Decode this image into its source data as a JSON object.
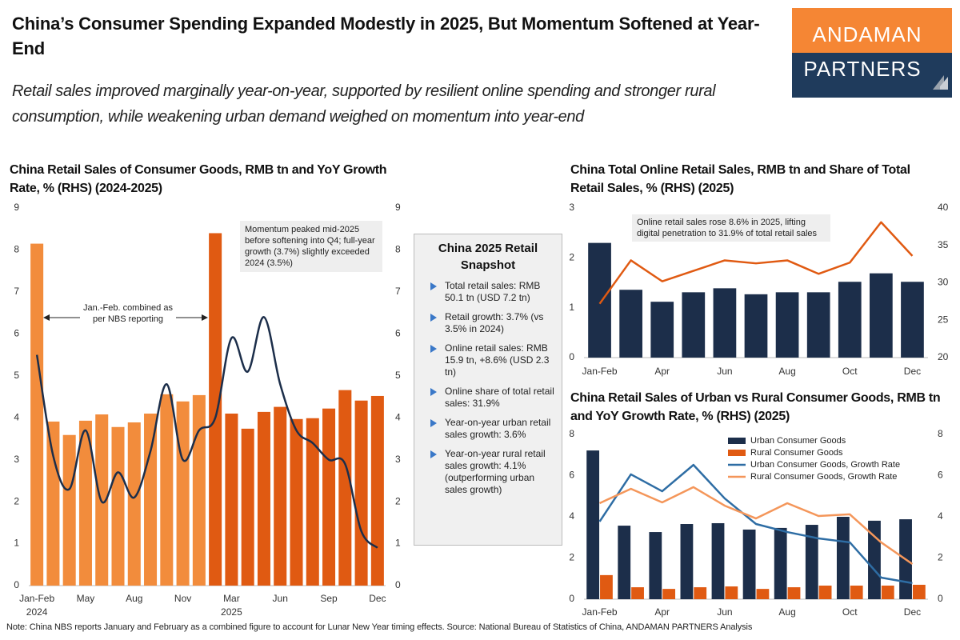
{
  "title": "China’s Consumer Spending Expanded Modestly in 2025, But Momentum Softened at Year-End",
  "subtitle": "Retail sales improved marginally year-on-year, supported by resilient online spending and stronger rural consumption, while weakening urban demand weighed on momentum into year-end",
  "logo": {
    "line1": "ANDAMAN",
    "line2": "PARTNERS"
  },
  "snapshot": {
    "title": "China 2025 Retail Snapshot",
    "items": [
      "Total retail sales: RMB 50.1 tn (USD 7.2 tn)",
      "Retail growth: 3.7% (vs 3.5% in 2024)",
      "Online retail sales: RMB 15.9 tn, +8.6% (USD 2.3 tn)",
      "Online share of total retail sales: 31.9%",
      "Year-on-year urban retail sales growth: 3.6%",
      "Year-on-year rural retail sales growth: 4.1% (outperforming urban sales growth)"
    ]
  },
  "footer": "Note: China NBS reports January and February as a combined figure to account for Lunar New Year timing effects. Source: National Bureau of Statistics of China, ANDAMAN PARTNERS Analysis",
  "chart_data": [
    {
      "type": "combo",
      "title": "China Retail Sales of Consumer Goods, RMB tn and YoY Growth Rate, % (RHS) (2024-2025)",
      "categories": [
        "Jan-Feb",
        null,
        null,
        "May",
        null,
        null,
        "Aug",
        null,
        null,
        "Nov",
        null,
        null,
        "Mar",
        null,
        null,
        "Jun",
        null,
        null,
        "Sep",
        null,
        null,
        "Dec"
      ],
      "category_groups": [
        {
          "label": "2024",
          "at": 0
        },
        {
          "label": "2025",
          "at": 12
        }
      ],
      "series": [
        {
          "type": "bar",
          "axis": "y",
          "colors": [
            "#f28c3c",
            "#f28c3c",
            "#f28c3c",
            "#f28c3c",
            "#f28c3c",
            "#f28c3c",
            "#f28c3c",
            "#f28c3c",
            "#f28c3c",
            "#f28c3c",
            "#f28c3c",
            "#e05a12",
            "#e05a12",
            "#e05a12",
            "#e05a12",
            "#e05a12",
            "#e05a12",
            "#e05a12",
            "#e05a12",
            "#e05a12",
            "#e05a12",
            "#e05a12"
          ],
          "values": [
            8.15,
            3.91,
            3.59,
            3.93,
            4.08,
            3.78,
            3.89,
            4.1,
            4.56,
            4.39,
            4.54,
            8.4,
            4.1,
            3.74,
            4.14,
            4.26,
            3.97,
            3.99,
            4.22,
            4.66,
            4.41,
            4.52
          ]
        },
        {
          "type": "line",
          "axis": "y2",
          "color": "#1c2e4a",
          "smooth": true,
          "values": [
            5.5,
            3.1,
            2.3,
            3.7,
            2.0,
            2.7,
            2.1,
            3.2,
            4.8,
            3.0,
            3.7,
            4.0,
            5.9,
            5.1,
            6.4,
            4.8,
            3.7,
            3.4,
            3.0,
            2.9,
            1.3,
            0.9
          ]
        }
      ],
      "ylim": [
        0,
        9
      ],
      "yticks": [
        0,
        1,
        2,
        3,
        4,
        5,
        6,
        7,
        8,
        9
      ],
      "y2lim": [
        0,
        9
      ],
      "y2ticks": [
        0,
        1,
        2,
        3,
        4,
        5,
        6,
        7,
        8,
        9
      ],
      "annotations": [
        "Momentum peaked mid-2025 before softening into Q4; full-year growth (3.7%) slightly exceeded 2024 (3.5%)",
        "Jan.-Feb. combined as per NBS reporting"
      ]
    },
    {
      "type": "combo",
      "title": "China Total Online Retail Sales, RMB tn and Share of Total Retail Sales, % (RHS) (2025)",
      "categories": [
        "Jan-Feb",
        null,
        "Apr",
        null,
        "Jun",
        null,
        "Aug",
        null,
        "Oct",
        null,
        "Dec"
      ],
      "series": [
        {
          "type": "bar",
          "axis": "y",
          "color": "#1c2e4a",
          "values": [
            2.3,
            1.36,
            1.12,
            1.31,
            1.39,
            1.27,
            1.31,
            1.31,
            1.52,
            1.69,
            1.52
          ]
        },
        {
          "type": "line",
          "axis": "y2",
          "color": "#e05a12",
          "values": [
            27.2,
            33.0,
            30.2,
            31.6,
            33.0,
            32.6,
            33.0,
            31.2,
            32.7,
            38.1,
            33.6
          ]
        }
      ],
      "ylim": [
        0,
        3
      ],
      "yticks": [
        0,
        1,
        2,
        3
      ],
      "y2lim": [
        20,
        40
      ],
      "y2ticks": [
        20,
        25,
        30,
        35,
        40
      ],
      "annotations": [
        "Online retail sales rose 8.6% in 2025, lifting digital penetration to 31.9% of total retail sales"
      ]
    },
    {
      "type": "combo",
      "title": "China Retail Sales of Urban vs Rural Consumer Goods, RMB tn and YoY Growth Rate, % (RHS) (2025)",
      "categories": [
        "Jan-Feb",
        null,
        "Apr",
        null,
        "Jun",
        null,
        "Aug",
        null,
        "Oct",
        null,
        "Dec"
      ],
      "series": [
        {
          "name": "Urban Consumer Goods",
          "type": "bar",
          "axis": "y",
          "color": "#1c2e4a",
          "values": [
            7.22,
            3.57,
            3.26,
            3.65,
            3.69,
            3.38,
            3.46,
            3.61,
            4.0,
            3.81,
            3.88
          ]
        },
        {
          "name": "Rural Consumer Goods",
          "type": "bar",
          "axis": "y",
          "color": "#e05a12",
          "values": [
            1.17,
            0.58,
            0.5,
            0.58,
            0.62,
            0.5,
            0.58,
            0.66,
            0.66,
            0.66,
            0.7
          ]
        },
        {
          "name": "Urban Consumer Goods, Growth Rate",
          "type": "line",
          "axis": "y2",
          "color": "#2e6da4",
          "values": [
            3.77,
            6.06,
            5.24,
            6.52,
            4.89,
            3.65,
            3.26,
            2.95,
            2.76,
            1.05,
            0.78
          ]
        },
        {
          "name": "Rural Consumer Goods, Growth Rate",
          "type": "line",
          "axis": "y2",
          "color": "#f4965a",
          "values": [
            4.66,
            5.36,
            4.7,
            5.44,
            4.54,
            3.92,
            4.66,
            4.04,
            4.12,
            2.76,
            1.71
          ]
        }
      ],
      "ylim": [
        0,
        8
      ],
      "yticks": [
        0,
        2,
        4,
        6,
        8
      ],
      "y2lim": [
        0,
        8
      ],
      "y2ticks": [
        0,
        2,
        4,
        6,
        8
      ],
      "legend": "upper right"
    }
  ]
}
